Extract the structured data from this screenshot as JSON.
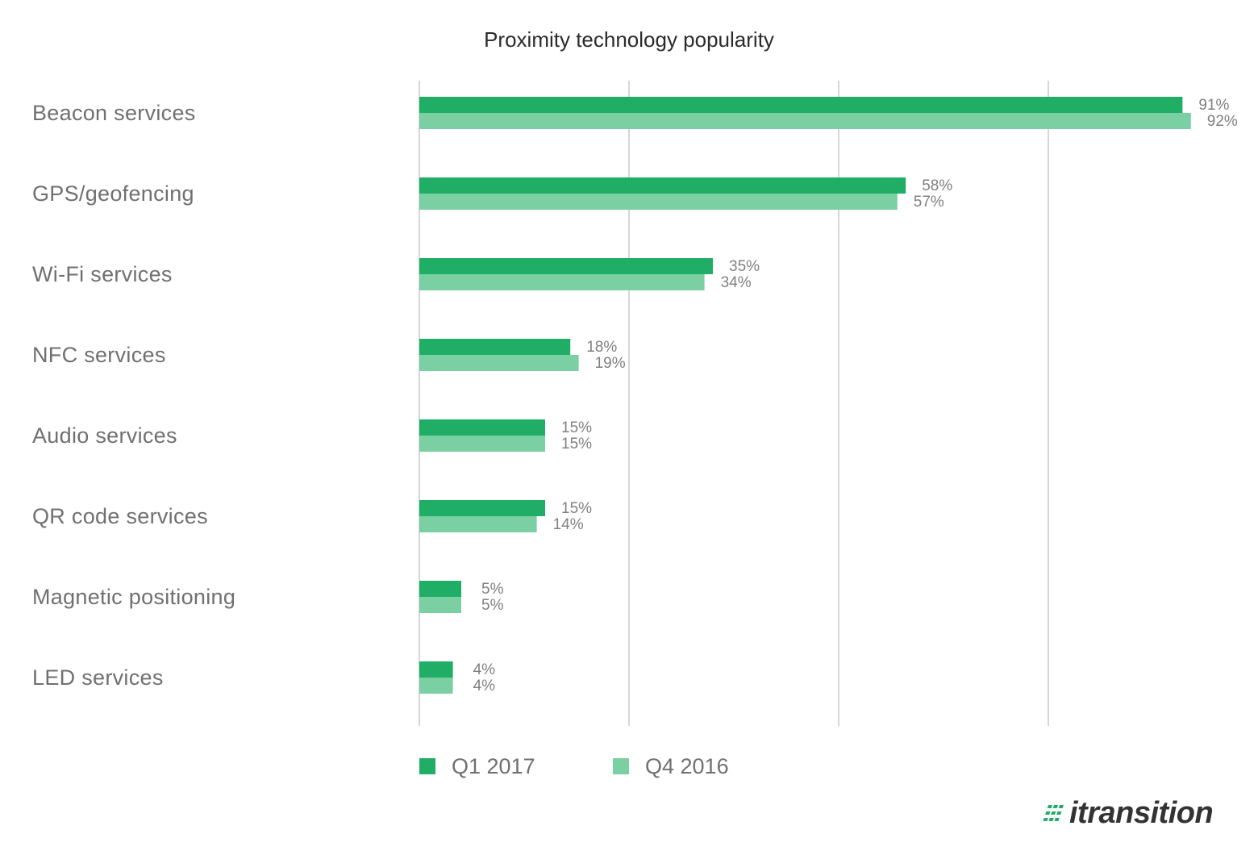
{
  "colors": {
    "q1_2017": "#20ae67",
    "q4_2016": "#7acfa3",
    "brand_text": "#333333",
    "brand_accent": "#20ae67"
  },
  "brand": {
    "name": "itransition",
    "logo_icon": "stripes-icon"
  },
  "chart_data": {
    "type": "bar",
    "orientation": "horizontal",
    "title": "Proximity technology popularity",
    "xlabel": "",
    "ylabel": "",
    "xlim": [
      0,
      100
    ],
    "gridlines_at": [
      25,
      50,
      75
    ],
    "grid": true,
    "legend_position": "bottom",
    "categories": [
      "Beacon services",
      "GPS/geofencing",
      "Wi-Fi services",
      "NFC services",
      "Audio services",
      "QR code services",
      "Magnetic positioning",
      "LED services"
    ],
    "series": [
      {
        "name": "Q1 2017",
        "values": [
          91,
          58,
          35,
          18,
          15,
          15,
          5,
          4
        ],
        "labels": [
          "91%",
          "58%",
          "35%",
          "18%",
          "15%",
          "15%",
          "5%",
          "4%"
        ]
      },
      {
        "name": "Q4 2016",
        "values": [
          92,
          57,
          34,
          19,
          15,
          14,
          5,
          4
        ],
        "labels": [
          "92%",
          "57%",
          "34%",
          "19%",
          "15%",
          "14%",
          "5%",
          "4%"
        ]
      }
    ]
  }
}
